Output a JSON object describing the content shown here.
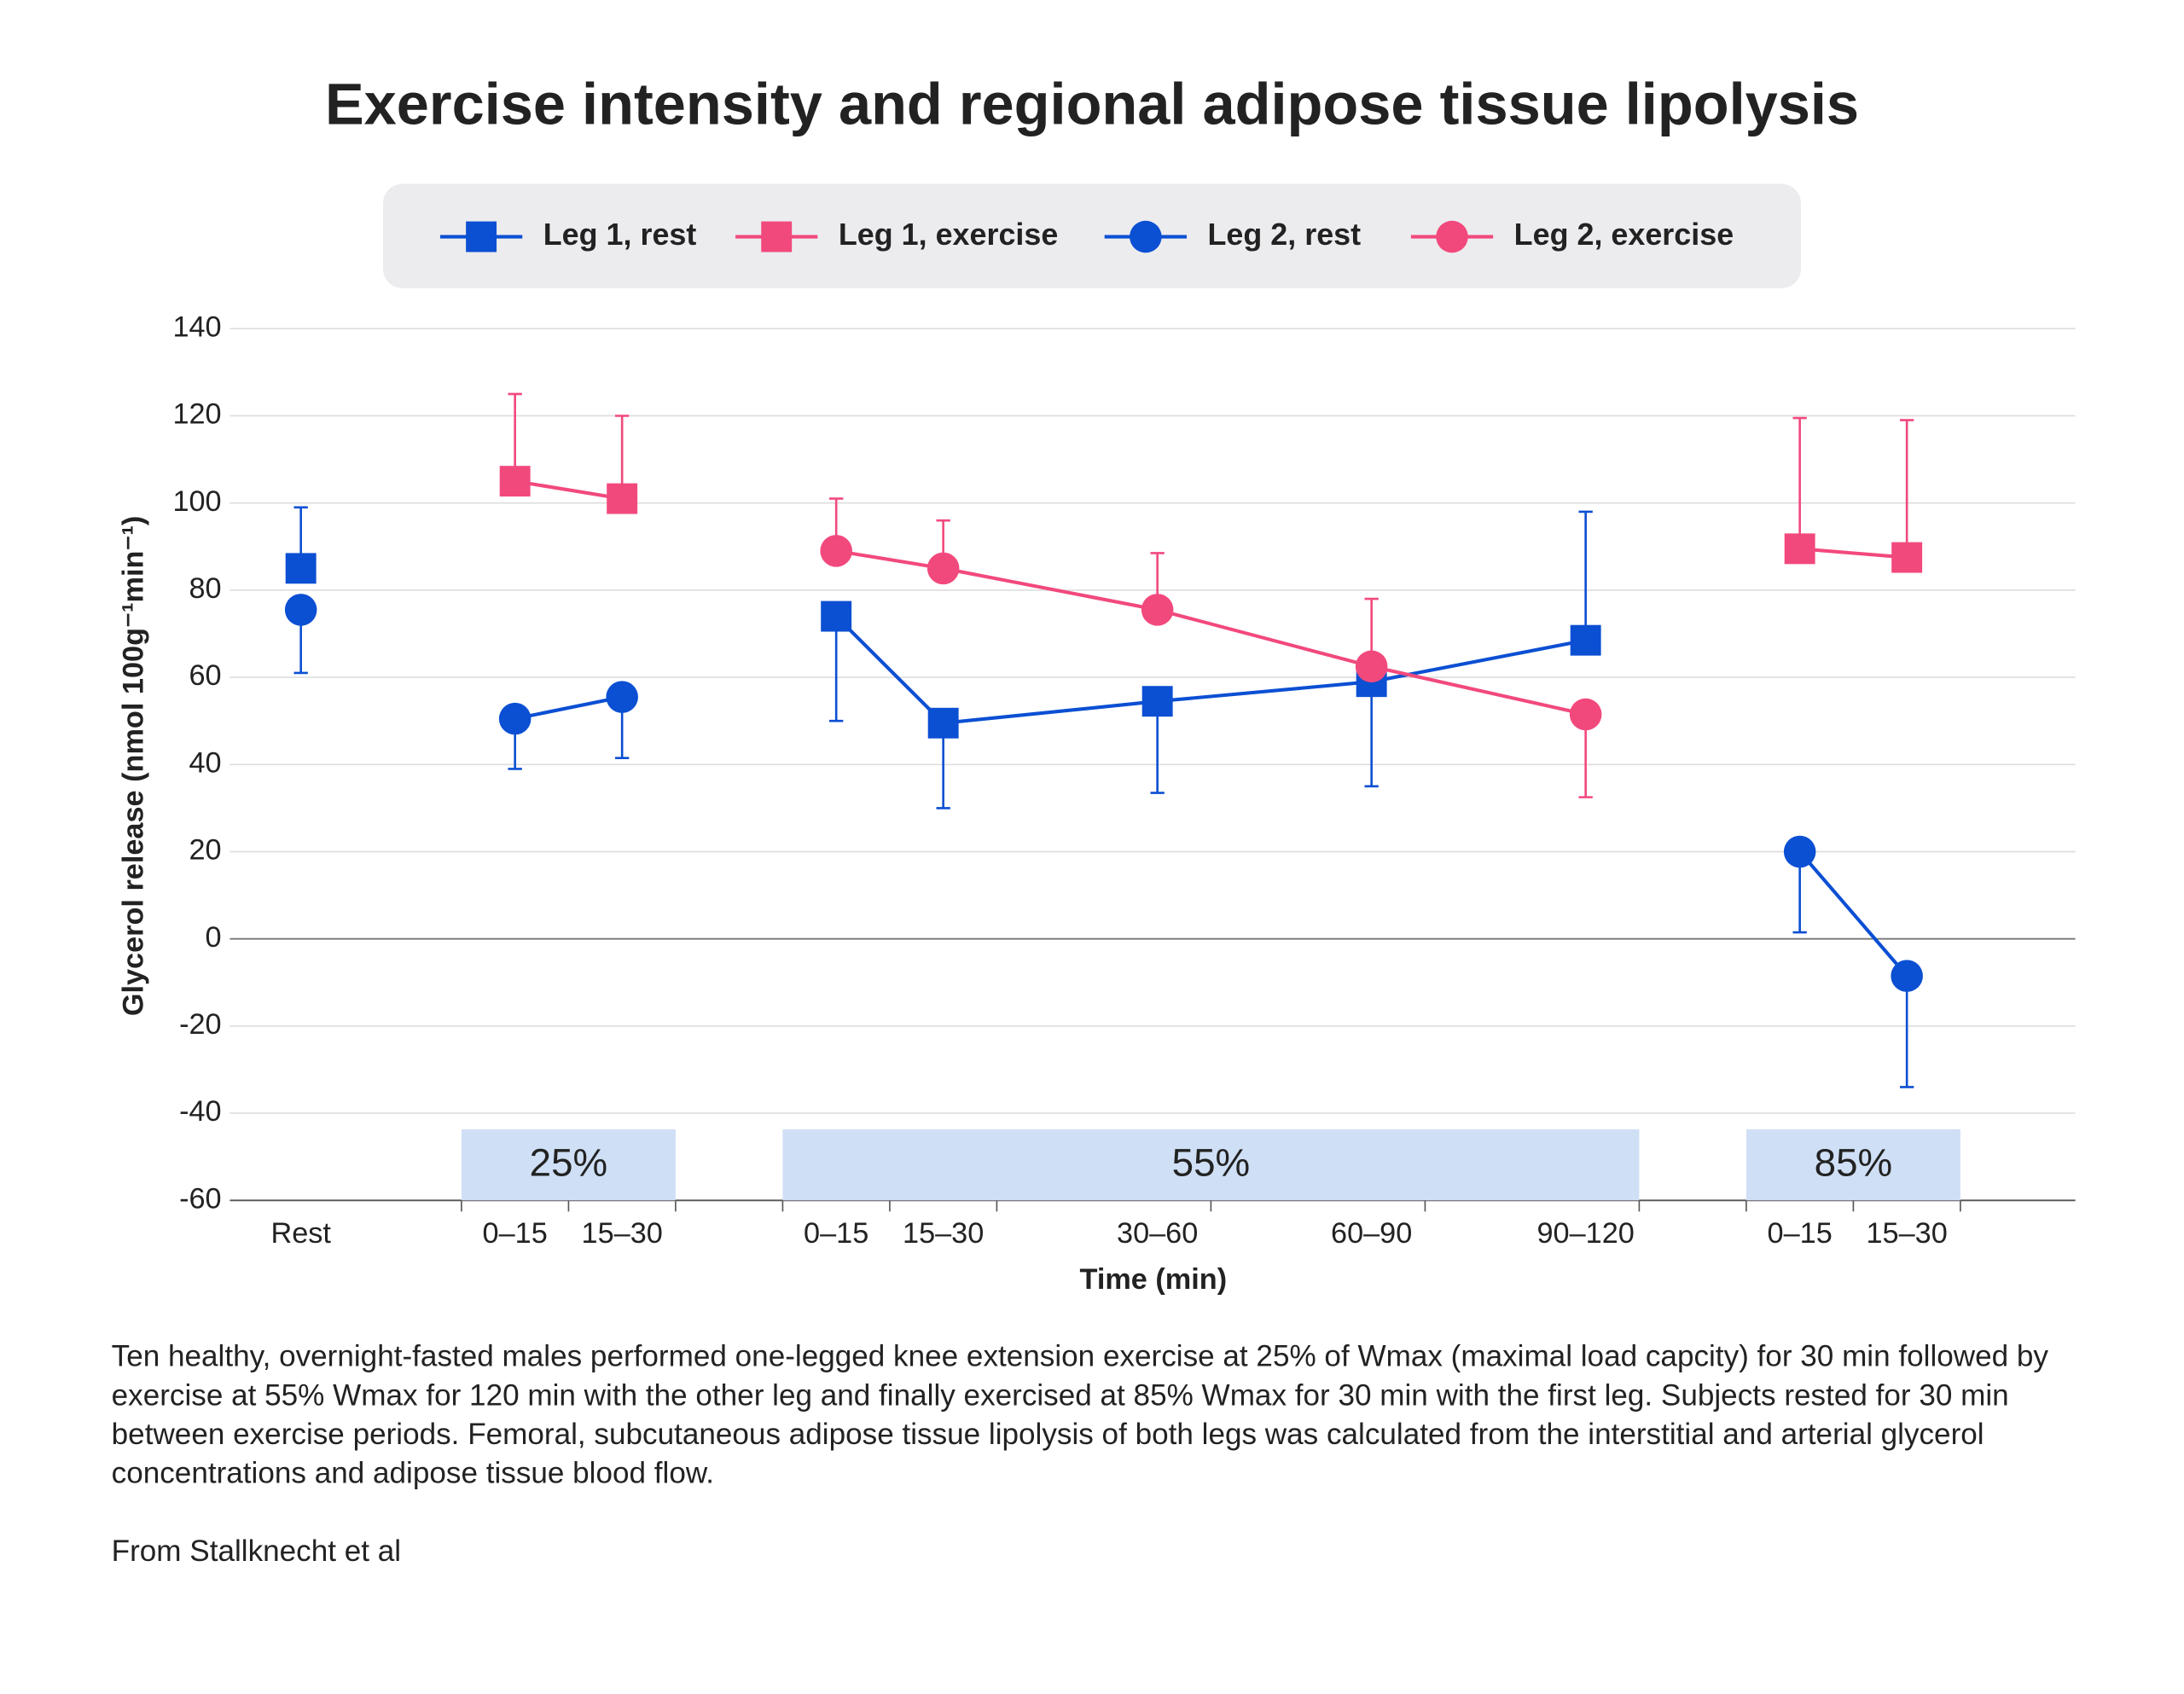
{
  "chart_data": {
    "type": "line",
    "title": "Exercise intensity and regional adipose tissue lipolysis",
    "ylabel": "Glycerol release (nmol 100g⁻¹min⁻¹)",
    "xlabel": "Time (min)",
    "caption": "Ten healthy, overnight-fasted males performed one-legged knee extension exercise at 25% of Wmax (maximal load capcity) for 30 min followed by exercise at 55% Wmax for 120 min with the other leg and finally exercised at 85% Wmax for 30 min with the first leg. Subjects rested for 30 min between exercise periods. Femoral, subcutaneous adipose tissue lipolysis of both legs was calculated from the interstitial and arterial glycerol concentrations and adipose tissue blood flow.",
    "source": "From Stallknecht et al",
    "groups": [
      {
        "label": null,
        "categories": [
          "Rest"
        ]
      },
      {
        "label": "25%",
        "categories": [
          "0–15",
          "15–30"
        ]
      },
      {
        "label": "55%",
        "categories": [
          "0–15",
          "15–30",
          "30–60",
          "60–90",
          "90–120"
        ]
      },
      {
        "label": "85%",
        "categories": [
          "0–15",
          "15–30"
        ]
      }
    ],
    "series": [
      {
        "name": "Leg 1, rest",
        "color": "#0b4fd3",
        "marker": "square",
        "values": [
          85,
          null,
          null,
          74,
          49.5,
          54.5,
          59,
          68.5,
          null,
          null
        ],
        "errors": [
          14,
          null,
          null,
          24,
          19.5,
          21,
          24,
          29.5,
          null,
          null
        ],
        "error_sides": [
          "+",
          null,
          null,
          "-",
          "-",
          "-",
          "-",
          "+",
          null,
          null
        ]
      },
      {
        "name": "Leg 1, exercise",
        "color": "#f2497d",
        "marker": "square",
        "values": [
          null,
          105,
          101,
          null,
          null,
          null,
          null,
          null,
          89.5,
          87.5
        ],
        "errors": [
          null,
          20,
          19,
          null,
          null,
          null,
          null,
          null,
          30,
          31.5
        ],
        "error_sides": [
          null,
          "+",
          "+",
          null,
          null,
          null,
          null,
          null,
          "+",
          "+"
        ]
      },
      {
        "name": "Leg 2, rest",
        "color": "#0b4fd3",
        "marker": "circle",
        "values": [
          75.5,
          50.5,
          55.5,
          null,
          null,
          null,
          null,
          null,
          20,
          -8.5
        ],
        "errors": [
          14.5,
          11.5,
          14,
          null,
          null,
          null,
          null,
          null,
          18.5,
          25.5
        ],
        "error_sides": [
          "-",
          "-",
          "-",
          null,
          null,
          null,
          null,
          null,
          "-",
          "-"
        ]
      },
      {
        "name": "Leg 2, exercise",
        "color": "#f2497d",
        "marker": "circle",
        "values": [
          null,
          null,
          null,
          89,
          85,
          75.5,
          62.5,
          51.5,
          null,
          null
        ],
        "errors": [
          null,
          null,
          null,
          12,
          11,
          13,
          15.5,
          19,
          null,
          null
        ],
        "error_sides": [
          null,
          null,
          null,
          "+",
          "+",
          "+",
          "+",
          "-",
          null,
          null
        ]
      }
    ],
    "ylim": [
      -60,
      140
    ],
    "yticks": [
      -60,
      -40,
      -20,
      0,
      20,
      40,
      60,
      80,
      100,
      120,
      140
    ],
    "grid": true,
    "legend": "top"
  }
}
